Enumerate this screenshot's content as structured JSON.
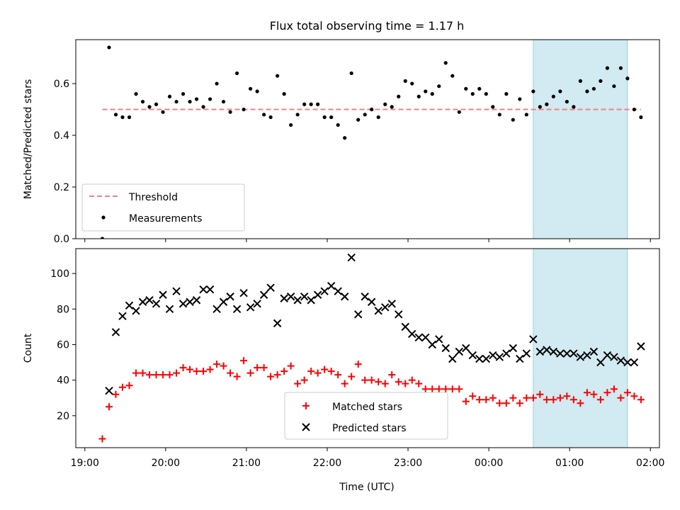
{
  "figure": {
    "title": "Flux total observing time = 1.17 h",
    "xlabel": "Time (UTC)"
  },
  "chart_data": [
    {
      "type": "scatter",
      "panel": "top",
      "ylabel": "Matched/Predicted stars",
      "xlim": [
        "19:00",
        "02:00"
      ],
      "ylim": [
        0,
        0.77
      ],
      "yticks": [
        "0.0",
        "0.2",
        "0.4",
        "0.6"
      ],
      "ytick_values": [
        0,
        0.2,
        0.4,
        0.6
      ],
      "grid": false,
      "legend_placement": "lower-left",
      "highlight_span": {
        "start": "00:33",
        "end": "01:43",
        "color": "#add8e6"
      },
      "threshold": {
        "name": "Threshold",
        "value": 0.5,
        "start": "19:13",
        "end": "01:53",
        "color": "#f08080",
        "style": "dashed"
      },
      "series": [
        {
          "name": "Measurements",
          "marker": "dot",
          "color": "#000000",
          "x": [
            "19:13",
            "19:18",
            "19:23",
            "19:28",
            "19:33",
            "19:38",
            "19:43",
            "19:48",
            "19:53",
            "19:58",
            "20:03",
            "20:08",
            "20:13",
            "20:18",
            "20:23",
            "20:28",
            "20:33",
            "20:38",
            "20:43",
            "20:48",
            "20:53",
            "20:58",
            "21:03",
            "21:08",
            "21:13",
            "21:18",
            "21:23",
            "21:28",
            "21:33",
            "21:38",
            "21:43",
            "21:48",
            "21:53",
            "21:58",
            "22:03",
            "22:08",
            "22:13",
            "22:18",
            "22:23",
            "22:28",
            "22:33",
            "22:38",
            "22:43",
            "22:48",
            "22:53",
            "22:58",
            "23:03",
            "23:08",
            "23:13",
            "23:18",
            "23:23",
            "23:28",
            "23:33",
            "23:38",
            "23:43",
            "23:48",
            "23:53",
            "23:58",
            "00:03",
            "00:08",
            "00:13",
            "00:18",
            "00:23",
            "00:28",
            "00:33",
            "00:38",
            "00:43",
            "00:48",
            "00:53",
            "00:58",
            "01:03",
            "01:08",
            "01:13",
            "01:18",
            "01:23",
            "01:28",
            "01:33",
            "01:38",
            "01:43",
            "01:48",
            "01:53"
          ],
          "y": [
            0.0,
            0.74,
            0.48,
            0.47,
            0.47,
            0.56,
            0.53,
            0.51,
            0.52,
            0.49,
            0.55,
            0.53,
            0.56,
            0.53,
            0.54,
            0.51,
            0.54,
            0.6,
            0.53,
            0.49,
            0.64,
            0.5,
            0.58,
            0.57,
            0.48,
            0.47,
            0.63,
            0.56,
            0.44,
            0.48,
            0.52,
            0.52,
            0.52,
            0.47,
            0.47,
            0.44,
            0.39,
            0.64,
            0.46,
            0.48,
            0.5,
            0.47,
            0.52,
            0.51,
            0.55,
            0.61,
            0.6,
            0.55,
            0.57,
            0.56,
            0.59,
            0.68,
            0.63,
            0.49,
            0.58,
            0.56,
            0.58,
            0.56,
            0.51,
            0.48,
            0.56,
            0.46,
            0.54,
            0.48,
            0.57,
            0.51,
            0.52,
            0.55,
            0.57,
            0.53,
            0.51,
            0.61,
            0.57,
            0.58,
            0.61,
            0.66,
            0.59,
            0.66,
            0.62,
            0.5,
            0.47
          ]
        }
      ]
    },
    {
      "type": "scatter",
      "panel": "bottom",
      "ylabel": "Count",
      "xlabel": "Time (UTC)",
      "xlim": [
        "19:00",
        "02:00"
      ],
      "xticks": [
        "19:00",
        "20:00",
        "21:00",
        "22:00",
        "23:00",
        "00:00",
        "01:00",
        "02:00"
      ],
      "ylim": [
        2,
        114
      ],
      "yticks": [
        "20",
        "40",
        "60",
        "80",
        "100"
      ],
      "ytick_values": [
        20,
        40,
        60,
        80,
        100
      ],
      "grid": false,
      "legend_placement": "lower-center",
      "highlight_span": {
        "start": "00:33",
        "end": "01:43",
        "color": "#add8e6"
      },
      "x": [
        "19:13",
        "19:18",
        "19:23",
        "19:28",
        "19:33",
        "19:38",
        "19:43",
        "19:48",
        "19:53",
        "19:58",
        "20:03",
        "20:08",
        "20:13",
        "20:18",
        "20:23",
        "20:28",
        "20:33",
        "20:38",
        "20:43",
        "20:48",
        "20:53",
        "20:58",
        "21:03",
        "21:08",
        "21:13",
        "21:18",
        "21:23",
        "21:28",
        "21:33",
        "21:38",
        "21:43",
        "21:48",
        "21:53",
        "21:58",
        "22:03",
        "22:08",
        "22:13",
        "22:18",
        "22:23",
        "22:28",
        "22:33",
        "22:38",
        "22:43",
        "22:48",
        "22:53",
        "22:58",
        "23:03",
        "23:08",
        "23:13",
        "23:18",
        "23:23",
        "23:28",
        "23:33",
        "23:38",
        "23:43",
        "23:48",
        "23:53",
        "23:58",
        "00:03",
        "00:08",
        "00:13",
        "00:18",
        "00:23",
        "00:28",
        "00:33",
        "00:38",
        "00:43",
        "00:48",
        "00:53",
        "00:58",
        "01:03",
        "01:08",
        "01:13",
        "01:18",
        "01:23",
        "01:28",
        "01:33",
        "01:38",
        "01:43",
        "01:48",
        "01:53"
      ],
      "series": [
        {
          "name": "Matched stars",
          "marker": "plus",
          "color": "#ff0000",
          "y": [
            7,
            25,
            32,
            36,
            37,
            44,
            44,
            43,
            43,
            43,
            43,
            44,
            47,
            46,
            45,
            45,
            46,
            49,
            48,
            44,
            42,
            51,
            44,
            47,
            47,
            42,
            43,
            45,
            48,
            38,
            40,
            45,
            44,
            46,
            45,
            43,
            38,
            42,
            49,
            40,
            40,
            39,
            38,
            43,
            39,
            38,
            40,
            38,
            35,
            35,
            35,
            35,
            35,
            35,
            28,
            31,
            29,
            29,
            30,
            27,
            27,
            30,
            27,
            30,
            30,
            32,
            29,
            29,
            30,
            31,
            29,
            27,
            33,
            32,
            29,
            33,
            35,
            30,
            33,
            31,
            29
          ]
        },
        {
          "name": "Predicted stars",
          "marker": "x",
          "color": "#000000",
          "y": [
            null,
            34,
            67,
            76,
            82,
            79,
            84,
            85,
            83,
            88,
            80,
            90,
            83,
            84,
            85,
            91,
            91,
            80,
            84,
            87,
            80,
            89,
            81,
            83,
            88,
            92,
            72,
            86,
            87,
            85,
            87,
            85,
            88,
            90,
            93,
            90,
            87,
            109,
            77,
            87,
            84,
            79,
            81,
            83,
            77,
            70,
            66,
            64,
            64,
            60,
            63,
            58,
            52,
            56,
            58,
            54,
            52,
            52,
            54,
            53,
            55,
            58,
            52,
            55,
            63,
            56,
            57,
            56,
            55,
            55,
            55,
            53,
            54,
            56,
            50,
            54,
            53,
            51,
            50,
            50,
            59
          ]
        }
      ]
    }
  ]
}
